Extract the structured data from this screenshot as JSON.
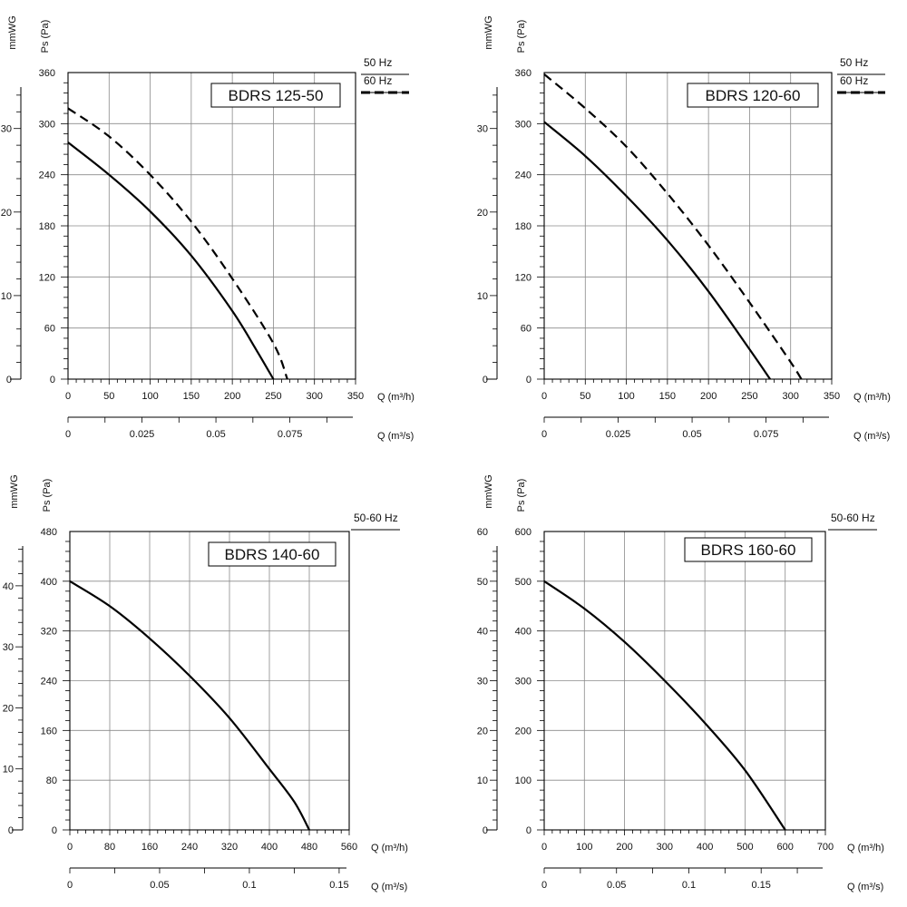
{
  "chart_data": [
    {
      "type": "line",
      "title": "BDRS 125-50",
      "ylabel": "Ps (Pa)",
      "ylabel2": "mmWG",
      "xlabel": "Q (m³/h)",
      "xlabel2": "Q (m³/s)",
      "xlim": [
        0,
        350
      ],
      "ylim": [
        0,
        360
      ],
      "xticks": [
        "0",
        "50",
        "100",
        "150",
        "200",
        "250",
        "300",
        "350"
      ],
      "yticks": [
        "0",
        "60",
        "120",
        "180",
        "240",
        "300",
        "360"
      ],
      "x2lim": [
        0,
        0.0972
      ],
      "x2ticks": [
        [
          0,
          "0"
        ],
        [
          0.025,
          "0.025"
        ],
        [
          0.05,
          "0.05"
        ],
        [
          0.075,
          "0.075"
        ]
      ],
      "y2lim": [
        0,
        36.7
      ],
      "y2ticks": [
        [
          0,
          "0"
        ],
        [
          10,
          "10"
        ],
        [
          20,
          "20"
        ],
        [
          30,
          "30"
        ]
      ],
      "legend": [
        {
          "label": "50 Hz",
          "style": "solid"
        },
        {
          "label": "60 Hz",
          "style": "dashed"
        }
      ],
      "grid": true,
      "series": [
        {
          "name": "50 Hz",
          "style": "solid",
          "x": [
            0,
            50,
            100,
            150,
            200,
            230,
            250
          ],
          "y": [
            278,
            240,
            197,
            145,
            80,
            33,
            0
          ]
        },
        {
          "name": "60 Hz",
          "style": "dashed",
          "x": [
            0,
            50,
            100,
            150,
            200,
            250,
            267
          ],
          "y": [
            318,
            285,
            240,
            185,
            118,
            42,
            0
          ]
        }
      ]
    },
    {
      "type": "line",
      "title": "BDRS 120-60",
      "ylabel": "Ps (Pa)",
      "ylabel2": "mmWG",
      "xlabel": "Q (m³/h)",
      "xlabel2": "Q (m³/s)",
      "xlim": [
        0,
        350
      ],
      "ylim": [
        0,
        360
      ],
      "xticks": [
        "0",
        "50",
        "100",
        "150",
        "200",
        "250",
        "300",
        "350"
      ],
      "yticks": [
        "0",
        "60",
        "120",
        "180",
        "240",
        "300",
        "360"
      ],
      "x2lim": [
        0,
        0.0972
      ],
      "x2ticks": [
        [
          0,
          "0"
        ],
        [
          0.025,
          "0.025"
        ],
        [
          0.05,
          "0.05"
        ],
        [
          0.075,
          "0.075"
        ]
      ],
      "y2lim": [
        0,
        36.7
      ],
      "y2ticks": [
        [
          0,
          "0"
        ],
        [
          10,
          "10"
        ],
        [
          20,
          "20"
        ],
        [
          30,
          "30"
        ]
      ],
      "legend": [
        {
          "label": "50 Hz",
          "style": "solid"
        },
        {
          "label": "60 Hz",
          "style": "dashed"
        }
      ],
      "grid": true,
      "series": [
        {
          "name": "50 Hz",
          "style": "solid",
          "x": [
            0,
            50,
            100,
            150,
            200,
            250,
            275
          ],
          "y": [
            302,
            262,
            215,
            163,
            103,
            35,
            0
          ]
        },
        {
          "name": "60 Hz",
          "style": "dashed",
          "x": [
            0,
            50,
            100,
            150,
            200,
            250,
            300,
            313
          ],
          "y": [
            358,
            318,
            273,
            218,
            157,
            90,
            20,
            0
          ]
        }
      ]
    },
    {
      "type": "line",
      "title": "BDRS 140-60",
      "ylabel": "Ps (Pa)",
      "ylabel2": "mmWG",
      "xlabel": "Q (m³/h)",
      "xlabel2": "Q (m³/s)",
      "xlim": [
        0,
        560
      ],
      "ylim": [
        0,
        480
      ],
      "xticks": [
        "0",
        "80",
        "160",
        "240",
        "320",
        "400",
        "480",
        "560"
      ],
      "yticks": [
        "0",
        "80",
        "160",
        "240",
        "320",
        "400",
        "480"
      ],
      "x2lim": [
        0,
        0.1556
      ],
      "x2ticks": [
        [
          0,
          "0"
        ],
        [
          0.05,
          "0.05"
        ],
        [
          0.1,
          "0.1"
        ],
        [
          0.15,
          "0.15"
        ]
      ],
      "y2lim": [
        0,
        48.9
      ],
      "y2ticks": [
        [
          0,
          "0"
        ],
        [
          10,
          "10"
        ],
        [
          20,
          "20"
        ],
        [
          30,
          "30"
        ],
        [
          40,
          "40"
        ]
      ],
      "legend": [
        {
          "label": "50-60 Hz",
          "style": "none"
        }
      ],
      "grid": true,
      "series": [
        {
          "name": "50-60 Hz",
          "style": "solid",
          "x": [
            0,
            80,
            160,
            240,
            320,
            400,
            450,
            480
          ],
          "y": [
            400,
            360,
            308,
            248,
            180,
            98,
            45,
            0
          ]
        }
      ]
    },
    {
      "type": "line",
      "title": "BDRS 160-60",
      "ylabel": "Ps (Pa)",
      "ylabel2": "mmWG",
      "xlabel": "Q (m³/h)",
      "xlabel2": "Q (m³/s)",
      "xlim": [
        0,
        700
      ],
      "ylim": [
        0,
        600
      ],
      "xticks": [
        "0",
        "100",
        "200",
        "300",
        "400",
        "500",
        "600",
        "700"
      ],
      "yticks": [
        "0",
        "100",
        "200",
        "300",
        "400",
        "500",
        "600"
      ],
      "x2lim": [
        0,
        0.1944
      ],
      "x2ticks": [
        [
          0,
          "0"
        ],
        [
          0.05,
          "0.05"
        ],
        [
          0.1,
          "0.1"
        ],
        [
          0.15,
          "0.15"
        ]
      ],
      "y2lim": [
        0,
        60
      ],
      "y2ticks": [
        [
          0,
          "0"
        ],
        [
          10,
          "10"
        ],
        [
          20,
          "20"
        ],
        [
          30,
          "30"
        ],
        [
          40,
          "40"
        ],
        [
          50,
          "50"
        ],
        [
          60,
          "60"
        ]
      ],
      "legend": [
        {
          "label": "50-60 Hz",
          "style": "none"
        }
      ],
      "grid": true,
      "series": [
        {
          "name": "50-60 Hz",
          "style": "solid",
          "x": [
            0,
            100,
            200,
            300,
            400,
            500,
            600
          ],
          "y": [
            500,
            445,
            378,
            300,
            215,
            120,
            0
          ]
        }
      ]
    }
  ]
}
